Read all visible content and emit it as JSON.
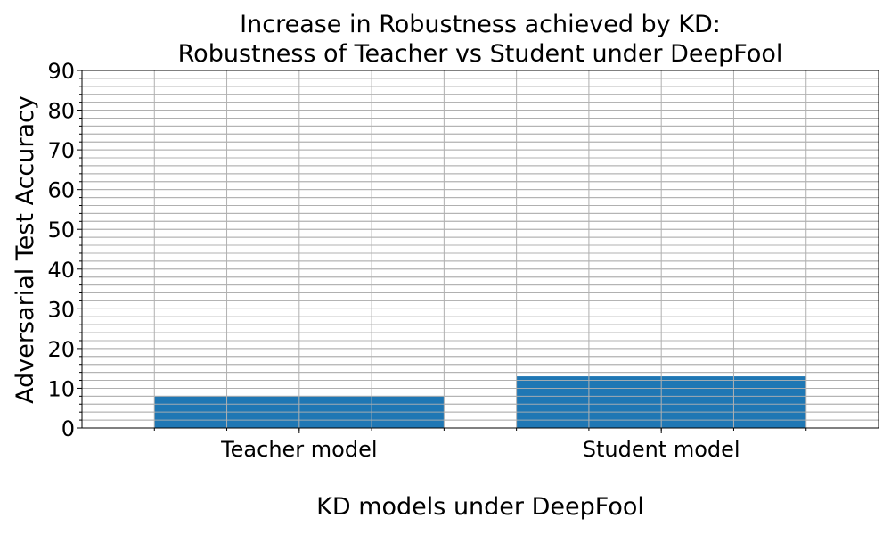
{
  "chart_data": {
    "type": "bar",
    "title_lines": [
      "Increase in Robustness achieved by KD:",
      "Robustness of Teacher vs Student under DeepFool"
    ],
    "xlabel": "KD models under DeepFool",
    "ylabel": "Adversarial Test Accuracy",
    "categories": [
      "Teacher model",
      "Student model"
    ],
    "values": [
      8.0,
      13.0
    ],
    "ylim": [
      0,
      90
    ],
    "yticks": [
      "0",
      "10",
      "20",
      "30",
      "40",
      "50",
      "60",
      "70",
      "80",
      "90"
    ],
    "y_minor_step": 2,
    "grid": true,
    "bar_color": "#1f77b4",
    "grid_color": "#b0b0b0"
  }
}
